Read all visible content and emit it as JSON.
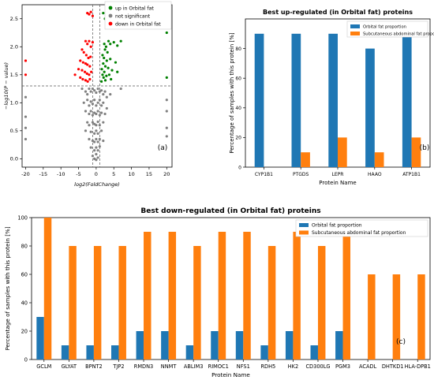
{
  "colors": {
    "up": "#008000",
    "not_significant": "#808080",
    "down": "#ff0000",
    "orbital": "#1f77b4",
    "subcutaneous": "#ff7f0e"
  },
  "chart_data": [
    {
      "id": "a",
      "type": "scatter",
      "title": "",
      "xlabel": "log2(FoldChange)",
      "ylabel": "−log10(P − value)",
      "panel_label": "(a)",
      "xlim": [
        -21,
        21.5
      ],
      "ylim": [
        -0.15,
        2.75
      ],
      "x_ticks": [
        -20,
        -15,
        -10,
        -5,
        0,
        5,
        10,
        15,
        20
      ],
      "y_ticks": [
        0.0,
        0.5,
        1.0,
        1.5,
        2.0,
        2.5
      ],
      "threshold_y": 1.3,
      "vlines_x": [
        -1,
        1
      ],
      "legend": [
        "up in Orbital fat",
        "not significant",
        "down in Orbital fat"
      ],
      "legend_position": "top-right",
      "series": [
        {
          "name": "up in Orbital fat",
          "points": [
            [
              2,
              2.6
            ],
            [
              2.5,
              2.5
            ],
            [
              3,
              2.6
            ],
            [
              2.3,
              2.05
            ],
            [
              2.8,
              2.0
            ],
            [
              3.5,
              2.1
            ],
            [
              4,
              2.05
            ],
            [
              5,
              2.08
            ],
            [
              6,
              2.02
            ],
            [
              7,
              2.1
            ],
            [
              2.5,
              1.95
            ],
            [
              3.2,
              1.9
            ],
            [
              1.8,
              1.85
            ],
            [
              2.2,
              1.8
            ],
            [
              3,
              1.75
            ],
            [
              4,
              1.78
            ],
            [
              5.5,
              1.72
            ],
            [
              2,
              1.7
            ],
            [
              2.6,
              1.65
            ],
            [
              3.4,
              1.62
            ],
            [
              1.6,
              1.6
            ],
            [
              2.3,
              1.55
            ],
            [
              4.5,
              1.58
            ],
            [
              6,
              1.55
            ],
            [
              1.8,
              1.5
            ],
            [
              2.9,
              1.48
            ],
            [
              3.7,
              1.5
            ],
            [
              2.1,
              1.45
            ],
            [
              4.2,
              1.42
            ],
            [
              1.5,
              1.38
            ],
            [
              2.6,
              1.4
            ],
            [
              20,
              2.25
            ],
            [
              20,
              1.45
            ]
          ]
        },
        {
          "name": "not significant",
          "points": [
            [
              -20,
              1.1
            ],
            [
              -20,
              0.75
            ],
            [
              -20,
              0.55
            ],
            [
              -20,
              0.35
            ],
            [
              20,
              1.05
            ],
            [
              20,
              0.85
            ],
            [
              20,
              0.55
            ],
            [
              20,
              0.4
            ],
            [
              -4,
              1.25
            ],
            [
              -3,
              1.2
            ],
            [
              -2.5,
              1.15
            ],
            [
              -2,
              1.25
            ],
            [
              -1.5,
              1.2
            ],
            [
              -1,
              1.25
            ],
            [
              -0.5,
              1.22
            ],
            [
              0,
              1.18
            ],
            [
              0.5,
              1.25
            ],
            [
              1,
              1.2
            ],
            [
              1.5,
              1.22
            ],
            [
              2,
              1.15
            ],
            [
              2.5,
              1.2
            ],
            [
              3,
              1.1
            ],
            [
              4,
              1.15
            ],
            [
              7,
              1.25
            ],
            [
              -3.5,
              1.0
            ],
            [
              -2.5,
              1.05
            ],
            [
              -2,
              0.95
            ],
            [
              -1.5,
              1.02
            ],
            [
              -1,
              0.98
            ],
            [
              -0.5,
              1.05
            ],
            [
              0,
              0.95
            ],
            [
              0.5,
              1.0
            ],
            [
              1,
              1.05
            ],
            [
              1.5,
              0.95
            ],
            [
              2,
              1.0
            ],
            [
              3,
              0.9
            ],
            [
              -3,
              0.85
            ],
            [
              -2,
              0.8
            ],
            [
              -1.5,
              0.85
            ],
            [
              -1,
              0.78
            ],
            [
              -0.5,
              0.82
            ],
            [
              0,
              0.8
            ],
            [
              0.5,
              0.85
            ],
            [
              1,
              0.78
            ],
            [
              1.5,
              0.82
            ],
            [
              2.5,
              0.8
            ],
            [
              -2.5,
              0.65
            ],
            [
              -2,
              0.6
            ],
            [
              -1,
              0.65
            ],
            [
              -0.5,
              0.62
            ],
            [
              0,
              0.6
            ],
            [
              0.5,
              0.66
            ],
            [
              1,
              0.6
            ],
            [
              2,
              0.65
            ],
            [
              -3,
              0.5
            ],
            [
              -1.5,
              0.48
            ],
            [
              -0.5,
              0.45
            ],
            [
              0,
              0.5
            ],
            [
              0.5,
              0.45
            ],
            [
              1.5,
              0.5
            ],
            [
              -2,
              0.35
            ],
            [
              -1,
              0.32
            ],
            [
              -0.5,
              0.3
            ],
            [
              0,
              0.35
            ],
            [
              0.5,
              0.3
            ],
            [
              1,
              0.35
            ],
            [
              2,
              0.32
            ],
            [
              -1.5,
              0.2
            ],
            [
              -0.5,
              0.15
            ],
            [
              0,
              0.2
            ],
            [
              0.5,
              0.15
            ],
            [
              1,
              0.22
            ],
            [
              -1,
              0.05
            ],
            [
              0,
              0.08
            ],
            [
              0.5,
              0.02
            ],
            [
              -0.5,
              0.0
            ],
            [
              0,
              -0.02
            ]
          ]
        },
        {
          "name": "down in Orbital fat",
          "points": [
            [
              -2.5,
              2.6
            ],
            [
              -2,
              2.58
            ],
            [
              -1.5,
              2.62
            ],
            [
              -1,
              2.55
            ],
            [
              -3,
              2.1
            ],
            [
              -2.5,
              2.05
            ],
            [
              -2,
              2.1
            ],
            [
              -1.5,
              2.0
            ],
            [
              -1,
              2.08
            ],
            [
              -4,
              1.95
            ],
            [
              -3.5,
              1.9
            ],
            [
              -2.8,
              1.85
            ],
            [
              -2.2,
              1.8
            ],
            [
              -1.6,
              1.82
            ],
            [
              -4.5,
              1.75
            ],
            [
              -3.7,
              1.72
            ],
            [
              -3,
              1.7
            ],
            [
              -2.5,
              1.68
            ],
            [
              -1.8,
              1.65
            ],
            [
              -5,
              1.6
            ],
            [
              -4,
              1.58
            ],
            [
              -3.2,
              1.55
            ],
            [
              -2.6,
              1.52
            ],
            [
              -2,
              1.5
            ],
            [
              -1.4,
              1.55
            ],
            [
              -4.5,
              1.45
            ],
            [
              -3.8,
              1.42
            ],
            [
              -3,
              1.4
            ],
            [
              -2.4,
              1.38
            ],
            [
              -1.8,
              1.42
            ],
            [
              -6,
              1.5
            ],
            [
              -20,
              1.75
            ],
            [
              -20,
              1.5
            ]
          ]
        }
      ]
    },
    {
      "id": "b",
      "type": "bar",
      "title": "Best up-regulated (in Orbital fat) proteins",
      "xlabel": "Protein Name",
      "ylabel": "Percentage of samples with this protein [%]",
      "panel_label": "(b)",
      "ylim": [
        0,
        100
      ],
      "y_ticks": [
        0,
        20,
        40,
        60,
        80
      ],
      "legend_position": "top-right",
      "categories": [
        "CYP1B1",
        "PTGDS",
        "LEPR",
        "HAAO",
        "ATP1B1"
      ],
      "series": [
        {
          "name": "Orbital fat proportion",
          "values": [
            90,
            90,
            90,
            80,
            90
          ]
        },
        {
          "name": "Subcutaneous abdominal fat proportion",
          "values": [
            0,
            10,
            20,
            10,
            20
          ]
        }
      ]
    },
    {
      "id": "c",
      "type": "bar",
      "title": "Best down-regulated (in Orbital fat) proteins",
      "xlabel": "Protein Name",
      "ylabel": "Percentage of samples with this protein [%]",
      "panel_label": "(c)",
      "ylim": [
        0,
        100
      ],
      "y_ticks": [
        0,
        20,
        40,
        60,
        80,
        100
      ],
      "legend_position": "top-right",
      "categories": [
        "GCLM",
        "GLYAT",
        "BPNT2",
        "TJP2",
        "RMDN3",
        "NNMT",
        "ABLIM3",
        "RIMOC1",
        "NFS1",
        "RDH5",
        "HK2",
        "CD300LG",
        "PGM3",
        "ACADL",
        "DHTKD1",
        "HLA-DPB1"
      ],
      "series": [
        {
          "name": "Orbital fat proportion",
          "values": [
            30,
            10,
            10,
            10,
            20,
            20,
            10,
            20,
            20,
            10,
            20,
            10,
            20,
            0,
            0,
            0
          ]
        },
        {
          "name": "Subcutaneous abdominal fat proportion",
          "values": [
            100,
            80,
            80,
            80,
            90,
            90,
            80,
            90,
            90,
            80,
            90,
            80,
            90,
            60,
            60,
            60
          ]
        }
      ]
    }
  ]
}
